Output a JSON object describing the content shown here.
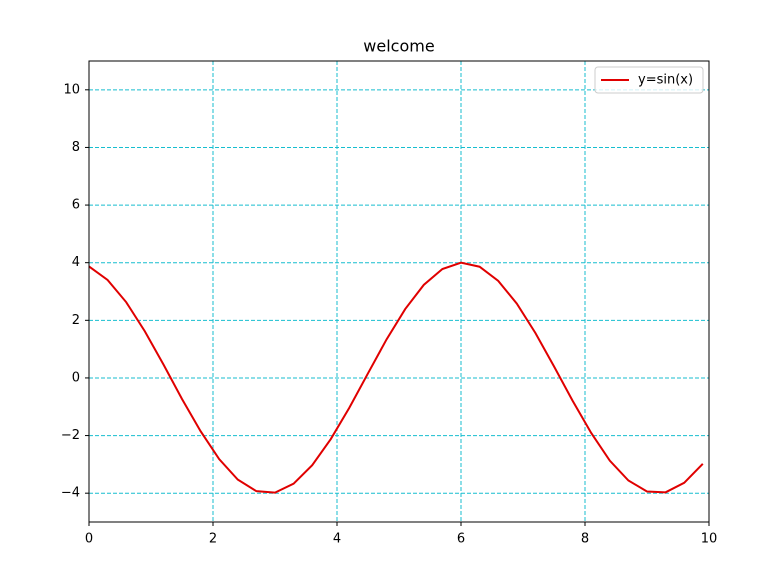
{
  "chart_data": {
    "type": "line",
    "title": "welcome",
    "x": [
      0,
      0.3,
      0.6,
      0.9,
      1.2,
      1.5,
      1.8,
      2.1,
      2.4,
      2.7,
      3.0,
      3.3,
      3.6,
      3.9,
      4.2,
      4.5,
      4.8,
      5.1,
      5.4,
      5.7,
      6.0,
      6.3,
      6.6,
      6.9,
      7.2,
      7.5,
      7.8,
      8.1,
      8.4,
      8.7,
      9.0,
      9.3,
      9.6,
      9.9
    ],
    "series": [
      {
        "name": "y=sin(x)",
        "color": "#e00000",
        "values": [
          3.87,
          3.4,
          2.63,
          1.62,
          0.47,
          -0.73,
          -1.85,
          -2.82,
          -3.53,
          -3.93,
          -3.98,
          -3.67,
          -3.03,
          -2.12,
          -1.03,
          0.16,
          1.34,
          2.39,
          3.23,
          3.78,
          4.0,
          3.86,
          3.37,
          2.58,
          1.56,
          0.4,
          -0.79,
          -1.91,
          -2.87,
          -3.56,
          -3.94,
          -3.97,
          -3.64,
          -2.98
        ]
      }
    ],
    "xlim": [
      0,
      10
    ],
    "xticks": [
      0,
      2,
      4,
      6,
      8,
      10
    ],
    "ylim": [
      -5,
      11
    ],
    "yticks": [
      {
        "value": -4,
        "label": "−4"
      },
      {
        "value": -2,
        "label": "−2"
      },
      0,
      2,
      4,
      6,
      8,
      10
    ],
    "grid": true,
    "grid_color": "#17becf",
    "legend": "upper right"
  }
}
